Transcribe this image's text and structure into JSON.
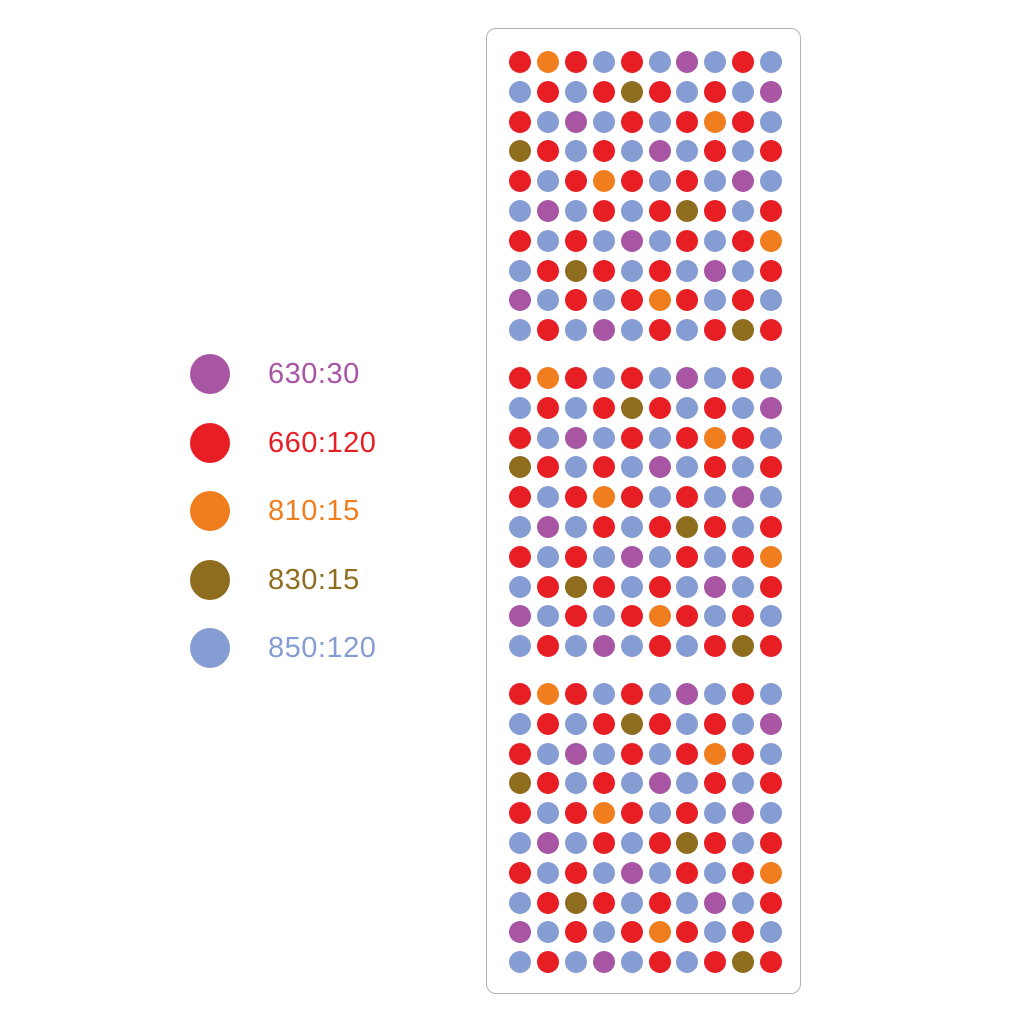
{
  "colors": {
    "p": "#A855A4",
    "r": "#E81E25",
    "o": "#F07E1E",
    "b": "#8F6D1F",
    "l": "#859DD2"
  },
  "legend": [
    {
      "key": "p",
      "label": "630:30"
    },
    {
      "key": "r",
      "label": "660:120"
    },
    {
      "key": "o",
      "label": "810:15"
    },
    {
      "key": "b",
      "label": "830:15"
    },
    {
      "key": "l",
      "label": "850:120"
    }
  ],
  "pattern": [
    "rorlrlplrl",
    "lrlrbrlrlp",
    "rlplrlrorl",
    "brlrlplrlr",
    "rlrorlrlpl",
    "lplrlrbrlr",
    "rlrlplrlro",
    "lrbrlrlplr",
    "plrlrorlrl",
    "lrlplrlrbr"
  ],
  "block_count": 3
}
